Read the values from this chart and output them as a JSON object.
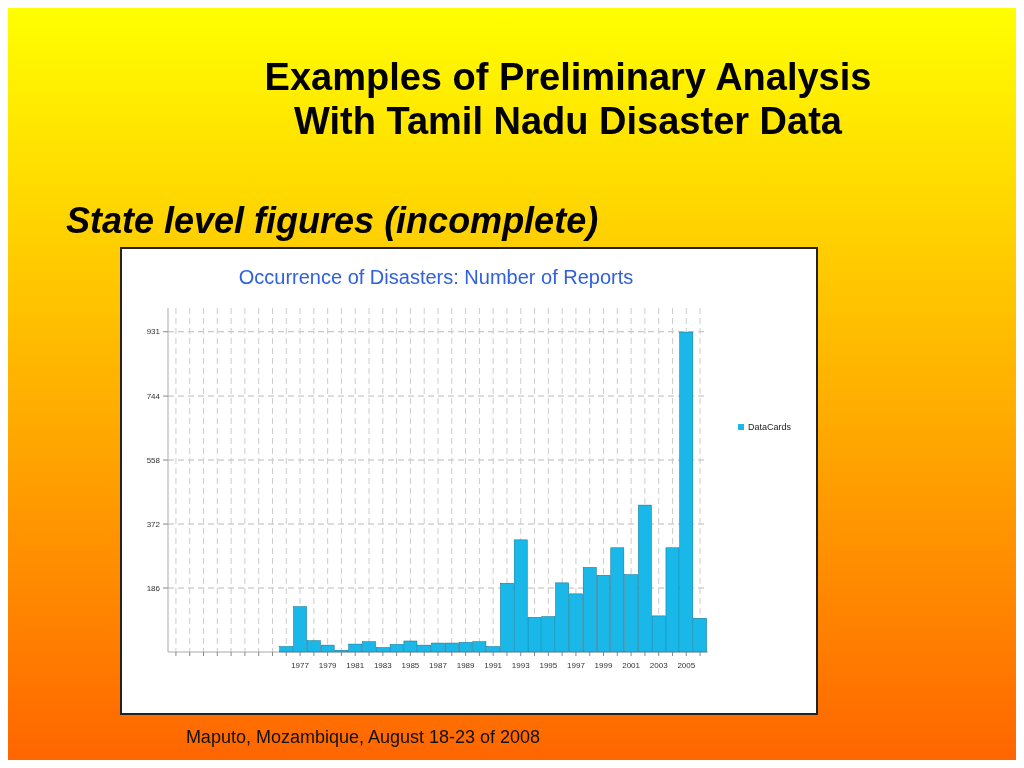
{
  "chart_data": {
    "type": "bar",
    "title": "Examples of Preliminary Analysis With Tamil Nadu Disaster Data",
    "subtitle": "State level figures (incomplete)",
    "annotations": [
      "Occurrence of Disasters: Number of Reports",
      "Maputo, Mozambique, August 18-23 of 2008"
    ],
    "categories": [
      null,
      null,
      null,
      null,
      null,
      null,
      null,
      null,
      null,
      "1977",
      null,
      "1979",
      null,
      "1981",
      null,
      "1983",
      null,
      "1985",
      null,
      "1987",
      null,
      "1989",
      null,
      "1991",
      null,
      "1993",
      null,
      "1995",
      null,
      "1997",
      null,
      "1999",
      null,
      "2001",
      null,
      "2003",
      null,
      "2005",
      null
    ],
    "series": [
      {
        "name": "DataCards",
        "color": "#1ab8e8",
        "values": [
          0,
          0,
          0,
          0,
          0,
          0,
          0,
          0,
          16,
          132,
          33,
          20,
          5,
          23,
          30,
          13,
          22,
          32,
          20,
          26,
          26,
          28,
          30,
          16,
          200,
          326,
          101,
          103,
          201,
          169,
          246,
          223,
          303,
          225,
          427,
          105,
          303,
          930,
          98
        ]
      }
    ],
    "ylim": [
      0,
      1000
    ],
    "yticks": [
      186,
      372,
      558,
      744,
      931
    ],
    "grid": true,
    "legend": "right"
  }
}
